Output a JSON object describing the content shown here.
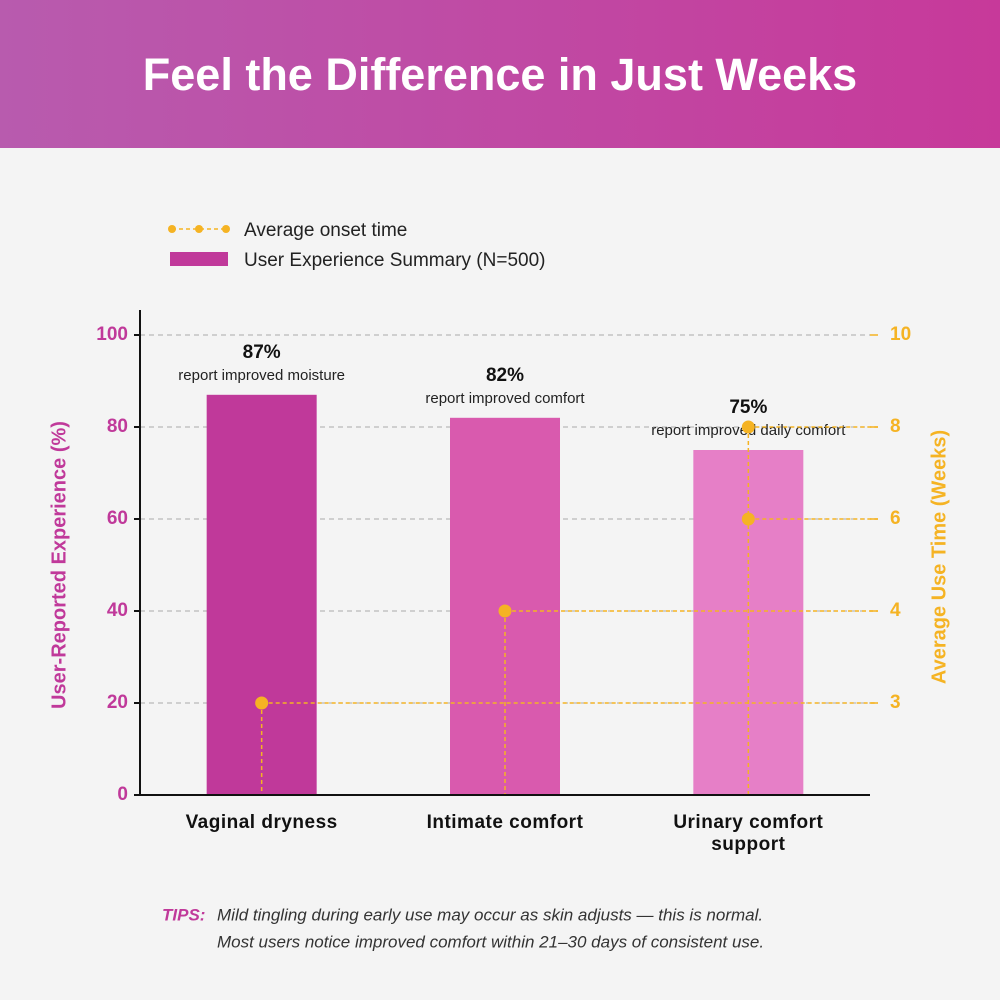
{
  "chart_data": {
    "type": "bar",
    "title": "Feel the Difference in Just Weeks",
    "categories": [
      "Vaginal dryness",
      "Intimate comfort",
      "Urinary comfort support"
    ],
    "series": [
      {
        "name": "User Experience Summary (N=500)",
        "colors": [
          "#c0399a",
          "#d95aae",
          "#e67fc7"
        ],
        "values": [
          87,
          82,
          75
        ],
        "value_labels": [
          "87%",
          "82%",
          "75%"
        ]
      }
    ],
    "annotations": [
      "report improved moisture",
      "report improved comfort",
      "report improved daily comfort"
    ],
    "line": {
      "name": "Average onset time",
      "color": "#f5b323",
      "axis": "y2",
      "values": [
        [
          3
        ],
        [
          4
        ],
        [
          6,
          8
        ]
      ]
    },
    "ylabel": "User-Reported Experience  (%)",
    "y2label": "Average Use Time (Weeks)",
    "ylim": [
      0,
      100
    ],
    "yticks": [
      0,
      20,
      40,
      60,
      80,
      100
    ],
    "y2lim": [
      3,
      10
    ],
    "y2ticks": [
      3,
      4,
      6,
      8,
      10
    ],
    "grid": true,
    "tips": {
      "label": "TIPS:",
      "lines": [
        "Mild tingling during early use may occur as skin adjusts — this is normal.",
        "Most users notice improved comfort within 21–30 days of consistent use."
      ]
    }
  }
}
